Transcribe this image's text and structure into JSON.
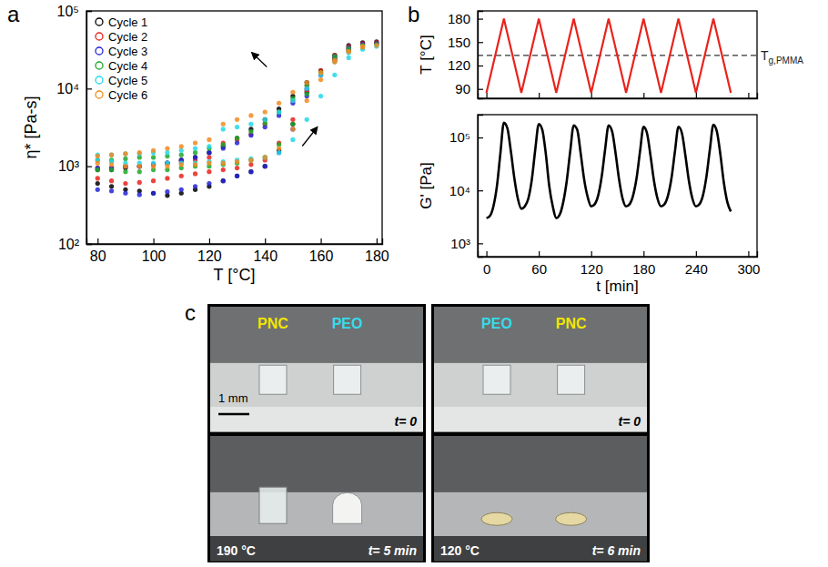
{
  "panel_labels": [
    "a",
    "b",
    "c"
  ],
  "chart_data": [
    {
      "type": "scatter",
      "x_label": "T [°C]",
      "y_label": "η* [Pa-s]",
      "log": "y",
      "xlim": [
        76,
        182
      ],
      "xticks": [
        80,
        100,
        120,
        140,
        160,
        180
      ],
      "ylim": [
        100,
        100000
      ],
      "yticks": [
        {
          "value": 100,
          "label": "10²"
        },
        {
          "value": 1000,
          "label": "10³"
        },
        {
          "value": 10000,
          "label": "10⁴"
        },
        {
          "value": 100000,
          "label": "10⁵"
        }
      ],
      "legend": "upper left",
      "marker": "circle",
      "x": [
        80,
        85,
        90,
        95,
        100,
        105,
        110,
        115,
        120,
        125,
        130,
        135,
        140,
        145,
        150,
        155,
        160,
        165,
        170,
        175,
        180,
        175,
        170,
        165,
        160,
        155,
        150,
        145,
        140,
        135,
        130,
        125,
        120,
        115,
        110,
        105,
        100,
        95,
        90,
        85,
        80
      ],
      "series": [
        {
          "name": "Cycle 1",
          "color": "#000000",
          "values": [
            600,
            550,
            500,
            480,
            450,
            420,
            450,
            500,
            550,
            650,
            750,
            850,
            1000,
            1600,
            3500,
            9000,
            16000,
            27000,
            36000,
            39000,
            40000,
            38000,
            33000,
            25000,
            17000,
            12000,
            8000,
            5500,
            4000,
            3000,
            2300,
            1800,
            1500,
            1300,
            1200,
            1100,
            1050,
            1000,
            950,
            900,
            900
          ]
        },
        {
          "name": "Cycle 2",
          "color": "#e8231c",
          "values": [
            700,
            650,
            600,
            620,
            650,
            700,
            750,
            800,
            850,
            900,
            950,
            1050,
            1200,
            2000,
            4000,
            9500,
            17000,
            27000,
            35000,
            38000,
            39000,
            37000,
            32000,
            24000,
            16000,
            11000,
            7000,
            5000,
            3500,
            2600,
            2200,
            2000,
            1300,
            1200,
            1150,
            1100,
            1050,
            1000,
            1000,
            950,
            950
          ]
        },
        {
          "name": "Cycle 3",
          "color": "#2424d8",
          "values": [
            500,
            480,
            450,
            430,
            450,
            470,
            500,
            550,
            600,
            650,
            750,
            850,
            1000,
            1500,
            3000,
            8000,
            15000,
            26000,
            34000,
            37000,
            38000,
            36000,
            31000,
            23000,
            15000,
            10000,
            6500,
            4500,
            3200,
            2500,
            2000,
            1700,
            1500,
            1300,
            1200,
            1100,
            1050,
            1000,
            1000,
            950,
            950
          ]
        },
        {
          "name": "Cycle 4",
          "color": "#1fa82a",
          "values": [
            900,
            900,
            850,
            850,
            900,
            900,
            950,
            1000,
            1000,
            1050,
            1100,
            1200,
            1300,
            1900,
            3500,
            8500,
            16000,
            26000,
            33000,
            36000,
            37000,
            35000,
            30000,
            23000,
            16000,
            11000,
            7500,
            5000,
            3600,
            2800,
            2300,
            1900,
            1700,
            1500,
            1400,
            1350,
            1300,
            1300,
            1250,
            1200,
            1200
          ]
        },
        {
          "name": "Cycle 5",
          "color": "#22d8e8",
          "values": [
            1200,
            1150,
            1100,
            1100,
            1100,
            1100,
            1100,
            1100,
            1150,
            1150,
            1200,
            1250,
            1300,
            1500,
            2200,
            4000,
            8000,
            15000,
            25000,
            32000,
            35000,
            34000,
            29000,
            22000,
            15000,
            10000,
            7000,
            5000,
            4000,
            3500,
            3200,
            3000,
            1800,
            1700,
            1600,
            1500,
            1500,
            1450,
            1450,
            1400,
            1400
          ]
        },
        {
          "name": "Cycle 6",
          "color": "#f28a1e",
          "values": [
            1100,
            1050,
            1000,
            1000,
            1000,
            1000,
            1050,
            1050,
            1100,
            1100,
            1150,
            1200,
            1300,
            1700,
            3000,
            7000,
            13000,
            22000,
            30000,
            34000,
            36000,
            35000,
            30000,
            23000,
            16000,
            12000,
            9000,
            6500,
            5000,
            4500,
            4000,
            3500,
            2200,
            2000,
            1800,
            1700,
            1600,
            1500,
            1450,
            1400,
            1350
          ]
        }
      ]
    },
    {
      "type": "line",
      "y_label": "T [°C]",
      "tick_labels": "y",
      "color": "#e8231c",
      "xlim": [
        -10,
        310
      ],
      "xticks": [
        0,
        60,
        120,
        180,
        240,
        300
      ],
      "ylim": [
        78,
        190
      ],
      "yticks": [
        90,
        120,
        150,
        180
      ],
      "x": [
        0,
        20,
        40,
        60,
        80,
        100,
        120,
        140,
        160,
        180,
        200,
        220,
        240,
        260,
        280
      ],
      "values": [
        85,
        180,
        85,
        180,
        85,
        180,
        85,
        180,
        85,
        180,
        85,
        180,
        85,
        180,
        85
      ],
      "annotations": [
        {
          "text": "T",
          "sub": "g,PMMA",
          "y": 133,
          "line_style": "dashed"
        }
      ]
    },
    {
      "type": "line",
      "x_label": "t [min]",
      "y_label": "G' [Pa]",
      "log": "y",
      "color": "#000000",
      "xlim": [
        -10,
        310
      ],
      "xticks": [
        0,
        60,
        120,
        180,
        240,
        300
      ],
      "ylim": [
        560,
        270000
      ],
      "yticks": [
        {
          "value": 1000,
          "label": "10³"
        },
        {
          "value": 10000,
          "label": "10⁴"
        },
        {
          "value": 100000,
          "label": "10⁵"
        }
      ],
      "x": [
        0,
        4,
        8,
        12,
        16,
        20,
        24,
        28,
        32,
        36,
        40,
        44,
        48,
        52,
        56,
        60,
        64,
        68,
        72,
        76,
        80,
        84,
        88,
        92,
        96,
        100,
        104,
        108,
        112,
        116,
        120,
        124,
        128,
        132,
        136,
        140,
        144,
        148,
        152,
        156,
        160,
        164,
        168,
        172,
        176,
        180,
        184,
        188,
        192,
        196,
        200,
        204,
        208,
        212,
        216,
        220,
        224,
        228,
        232,
        236,
        240,
        244,
        248,
        252,
        256,
        260,
        264,
        268,
        272,
        276,
        280
      ],
      "values": [
        3000,
        3300,
        5000,
        12000,
        50000,
        190000,
        150000,
        55000,
        17000,
        7000,
        4500,
        5000,
        7000,
        16000,
        60000,
        180000,
        140000,
        50000,
        12000,
        5000,
        3000,
        3500,
        6000,
        15000,
        55000,
        170000,
        140000,
        50000,
        16000,
        7500,
        5000,
        5500,
        8000,
        18000,
        60000,
        170000,
        130000,
        50000,
        16000,
        7000,
        5000,
        5500,
        8000,
        17000,
        55000,
        160000,
        120000,
        45000,
        15000,
        7000,
        5000,
        5500,
        8000,
        17000,
        55000,
        160000,
        120000,
        45000,
        15000,
        7000,
        5000,
        5500,
        8000,
        18000,
        60000,
        175000,
        130000,
        48000,
        14000,
        6000,
        4000
      ]
    }
  ],
  "photos": [
    {
      "samples": [
        {
          "name": "PNC",
          "color": "#f2e600"
        },
        {
          "name": "PEO",
          "color": "#35dcea"
        }
      ],
      "scale_bar": "1 mm",
      "top_time": "t= 0",
      "temperature": "190 °C",
      "bottom_time": "t= 5 min"
    },
    {
      "samples": [
        {
          "name": "PEO",
          "color": "#35dcea"
        },
        {
          "name": "PNC",
          "color": "#f2e600"
        }
      ],
      "top_time": "t= 0",
      "temperature": "120 °C",
      "bottom_time": "t= 6 min"
    }
  ]
}
